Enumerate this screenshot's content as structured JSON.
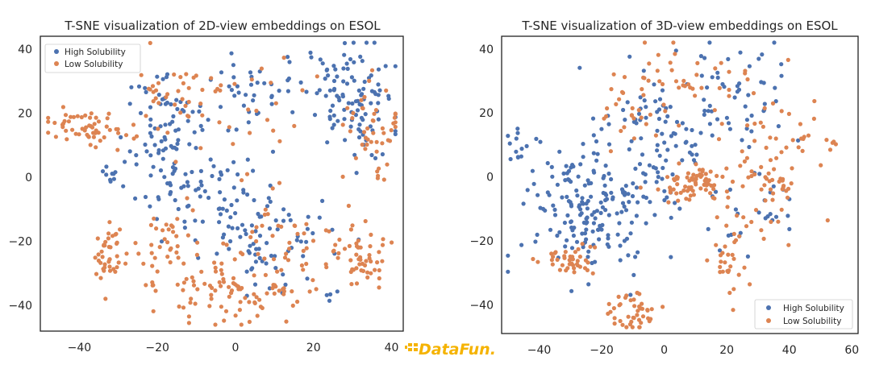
{
  "colors": {
    "high": "#4C72B0",
    "low": "#DD8452",
    "logo_gold": "#F5B300"
  },
  "watermark": {
    "text": "DataFun."
  },
  "chart_data": [
    {
      "type": "scatter",
      "title": "T-SNE visualization of 2D-view embeddings on ESOL",
      "xlabel": "",
      "ylabel": "",
      "xlim": [
        -50,
        43
      ],
      "ylim": [
        -48,
        44
      ],
      "xticks": [
        "−40",
        "−20",
        "0",
        "20",
        "40"
      ],
      "xtick_values": [
        -40,
        -20,
        0,
        20,
        40
      ],
      "yticks": [
        "40",
        "20",
        "0",
        "−20",
        "−40"
      ],
      "ytick_values": [
        40,
        20,
        0,
        -20,
        -40
      ],
      "grid": false,
      "legend": {
        "placement": "top-left",
        "entries": [
          "High Solubility",
          "Low Solubility"
        ]
      },
      "clusters": [
        {
          "series": 0,
          "cx": 30,
          "cy": 24,
          "sx": 7,
          "sy": 8,
          "n": 110,
          "seed": 11
        },
        {
          "series": 0,
          "cx": 5,
          "cy": 26,
          "sx": 5,
          "sy": 6,
          "n": 35,
          "seed": 12
        },
        {
          "series": 0,
          "cx": -18,
          "cy": 14,
          "sx": 6,
          "sy": 9,
          "n": 85,
          "seed": 13
        },
        {
          "series": 0,
          "cx": -5,
          "cy": -8,
          "sx": 9,
          "sy": 7,
          "n": 70,
          "seed": 14
        },
        {
          "series": 0,
          "cx": 8,
          "cy": -22,
          "sx": 8,
          "sy": 7,
          "n": 60,
          "seed": 15
        },
        {
          "series": 0,
          "cx": -32,
          "cy": 0,
          "sx": 1.5,
          "sy": 2,
          "n": 10,
          "seed": 16
        },
        {
          "series": 0,
          "cx": 25,
          "cy": -37,
          "sx": 1,
          "sy": 1,
          "n": 4,
          "seed": 17
        },
        {
          "series": 1,
          "cx": -38,
          "cy": 15,
          "sx": 6,
          "sy": 2.5,
          "n": 60,
          "seed": 21
        },
        {
          "series": 1,
          "cx": -33,
          "cy": -25,
          "sx": 2,
          "sy": 5,
          "n": 40,
          "seed": 22
        },
        {
          "series": 1,
          "cx": 33,
          "cy": -25,
          "sx": 3,
          "sy": 5,
          "n": 45,
          "seed": 23
        },
        {
          "series": 1,
          "cx": 36,
          "cy": 12,
          "sx": 4,
          "sy": 7,
          "n": 45,
          "seed": 24
        },
        {
          "series": 1,
          "cx": 0,
          "cy": -36,
          "sx": 10,
          "sy": 5,
          "n": 90,
          "seed": 25
        },
        {
          "series": 1,
          "cx": -14,
          "cy": 26,
          "sx": 6,
          "sy": 4,
          "n": 35,
          "seed": 26
        },
        {
          "series": 1,
          "cx": 15,
          "cy": -22,
          "sx": 9,
          "sy": 6,
          "n": 50,
          "seed": 27
        },
        {
          "series": 1,
          "cx": -20,
          "cy": -20,
          "sx": 5,
          "sy": 6,
          "n": 35,
          "seed": 28
        },
        {
          "series": 1,
          "cx": 8,
          "cy": 18,
          "sx": 10,
          "sy": 12,
          "n": 30,
          "seed": 29
        }
      ]
    },
    {
      "type": "scatter",
      "title": "T-SNE visualization of 3D-view embeddings on ESOL",
      "xlabel": "",
      "ylabel": "",
      "xlim": [
        -52,
        62
      ],
      "ylim": [
        -49,
        44
      ],
      "xticks": [
        "−40",
        "−20",
        "0",
        "20",
        "40",
        "60"
      ],
      "xtick_values": [
        -40,
        -20,
        0,
        20,
        40,
        60
      ],
      "yticks": [
        "40",
        "20",
        "0",
        "−20",
        "−40"
      ],
      "ytick_values": [
        40,
        20,
        0,
        -20,
        -40
      ],
      "grid": false,
      "legend": {
        "placement": "bottom-right",
        "entries": [
          "High Solubility",
          "Low Solubility"
        ]
      },
      "clusters": [
        {
          "series": 0,
          "cx": -25,
          "cy": -10,
          "sx": 10,
          "sy": 10,
          "n": 170,
          "seed": 31
        },
        {
          "series": 0,
          "cx": -5,
          "cy": 10,
          "sx": 8,
          "sy": 10,
          "n": 90,
          "seed": 32
        },
        {
          "series": 0,
          "cx": 20,
          "cy": 25,
          "sx": 8,
          "sy": 8,
          "n": 60,
          "seed": 33
        },
        {
          "series": 0,
          "cx": -48,
          "cy": 10,
          "sx": 2,
          "sy": 3,
          "n": 12,
          "seed": 34
        },
        {
          "series": 0,
          "cx": 30,
          "cy": -10,
          "sx": 8,
          "sy": 8,
          "n": 25,
          "seed": 35
        },
        {
          "series": 1,
          "cx": 10,
          "cy": -2,
          "sx": 6,
          "sy": 3,
          "n": 70,
          "seed": 41
        },
        {
          "series": 1,
          "cx": 35,
          "cy": 5,
          "sx": 8,
          "sy": 14,
          "n": 80,
          "seed": 42
        },
        {
          "series": 1,
          "cx": -10,
          "cy": -42,
          "sx": 4,
          "sy": 3,
          "n": 45,
          "seed": 43
        },
        {
          "series": 1,
          "cx": -30,
          "cy": -26,
          "sx": 6,
          "sy": 3,
          "n": 40,
          "seed": 44
        },
        {
          "series": 1,
          "cx": 20,
          "cy": -25,
          "sx": 3,
          "sy": 7,
          "n": 30,
          "seed": 45
        },
        {
          "series": 1,
          "cx": 5,
          "cy": 30,
          "sx": 12,
          "sy": 6,
          "n": 35,
          "seed": 46
        },
        {
          "series": 1,
          "cx": -12,
          "cy": 20,
          "sx": 5,
          "sy": 5,
          "n": 25,
          "seed": 47
        },
        {
          "series": 1,
          "cx": 53,
          "cy": 11,
          "sx": 1,
          "sy": 1.5,
          "n": 5,
          "seed": 48
        }
      ]
    }
  ]
}
